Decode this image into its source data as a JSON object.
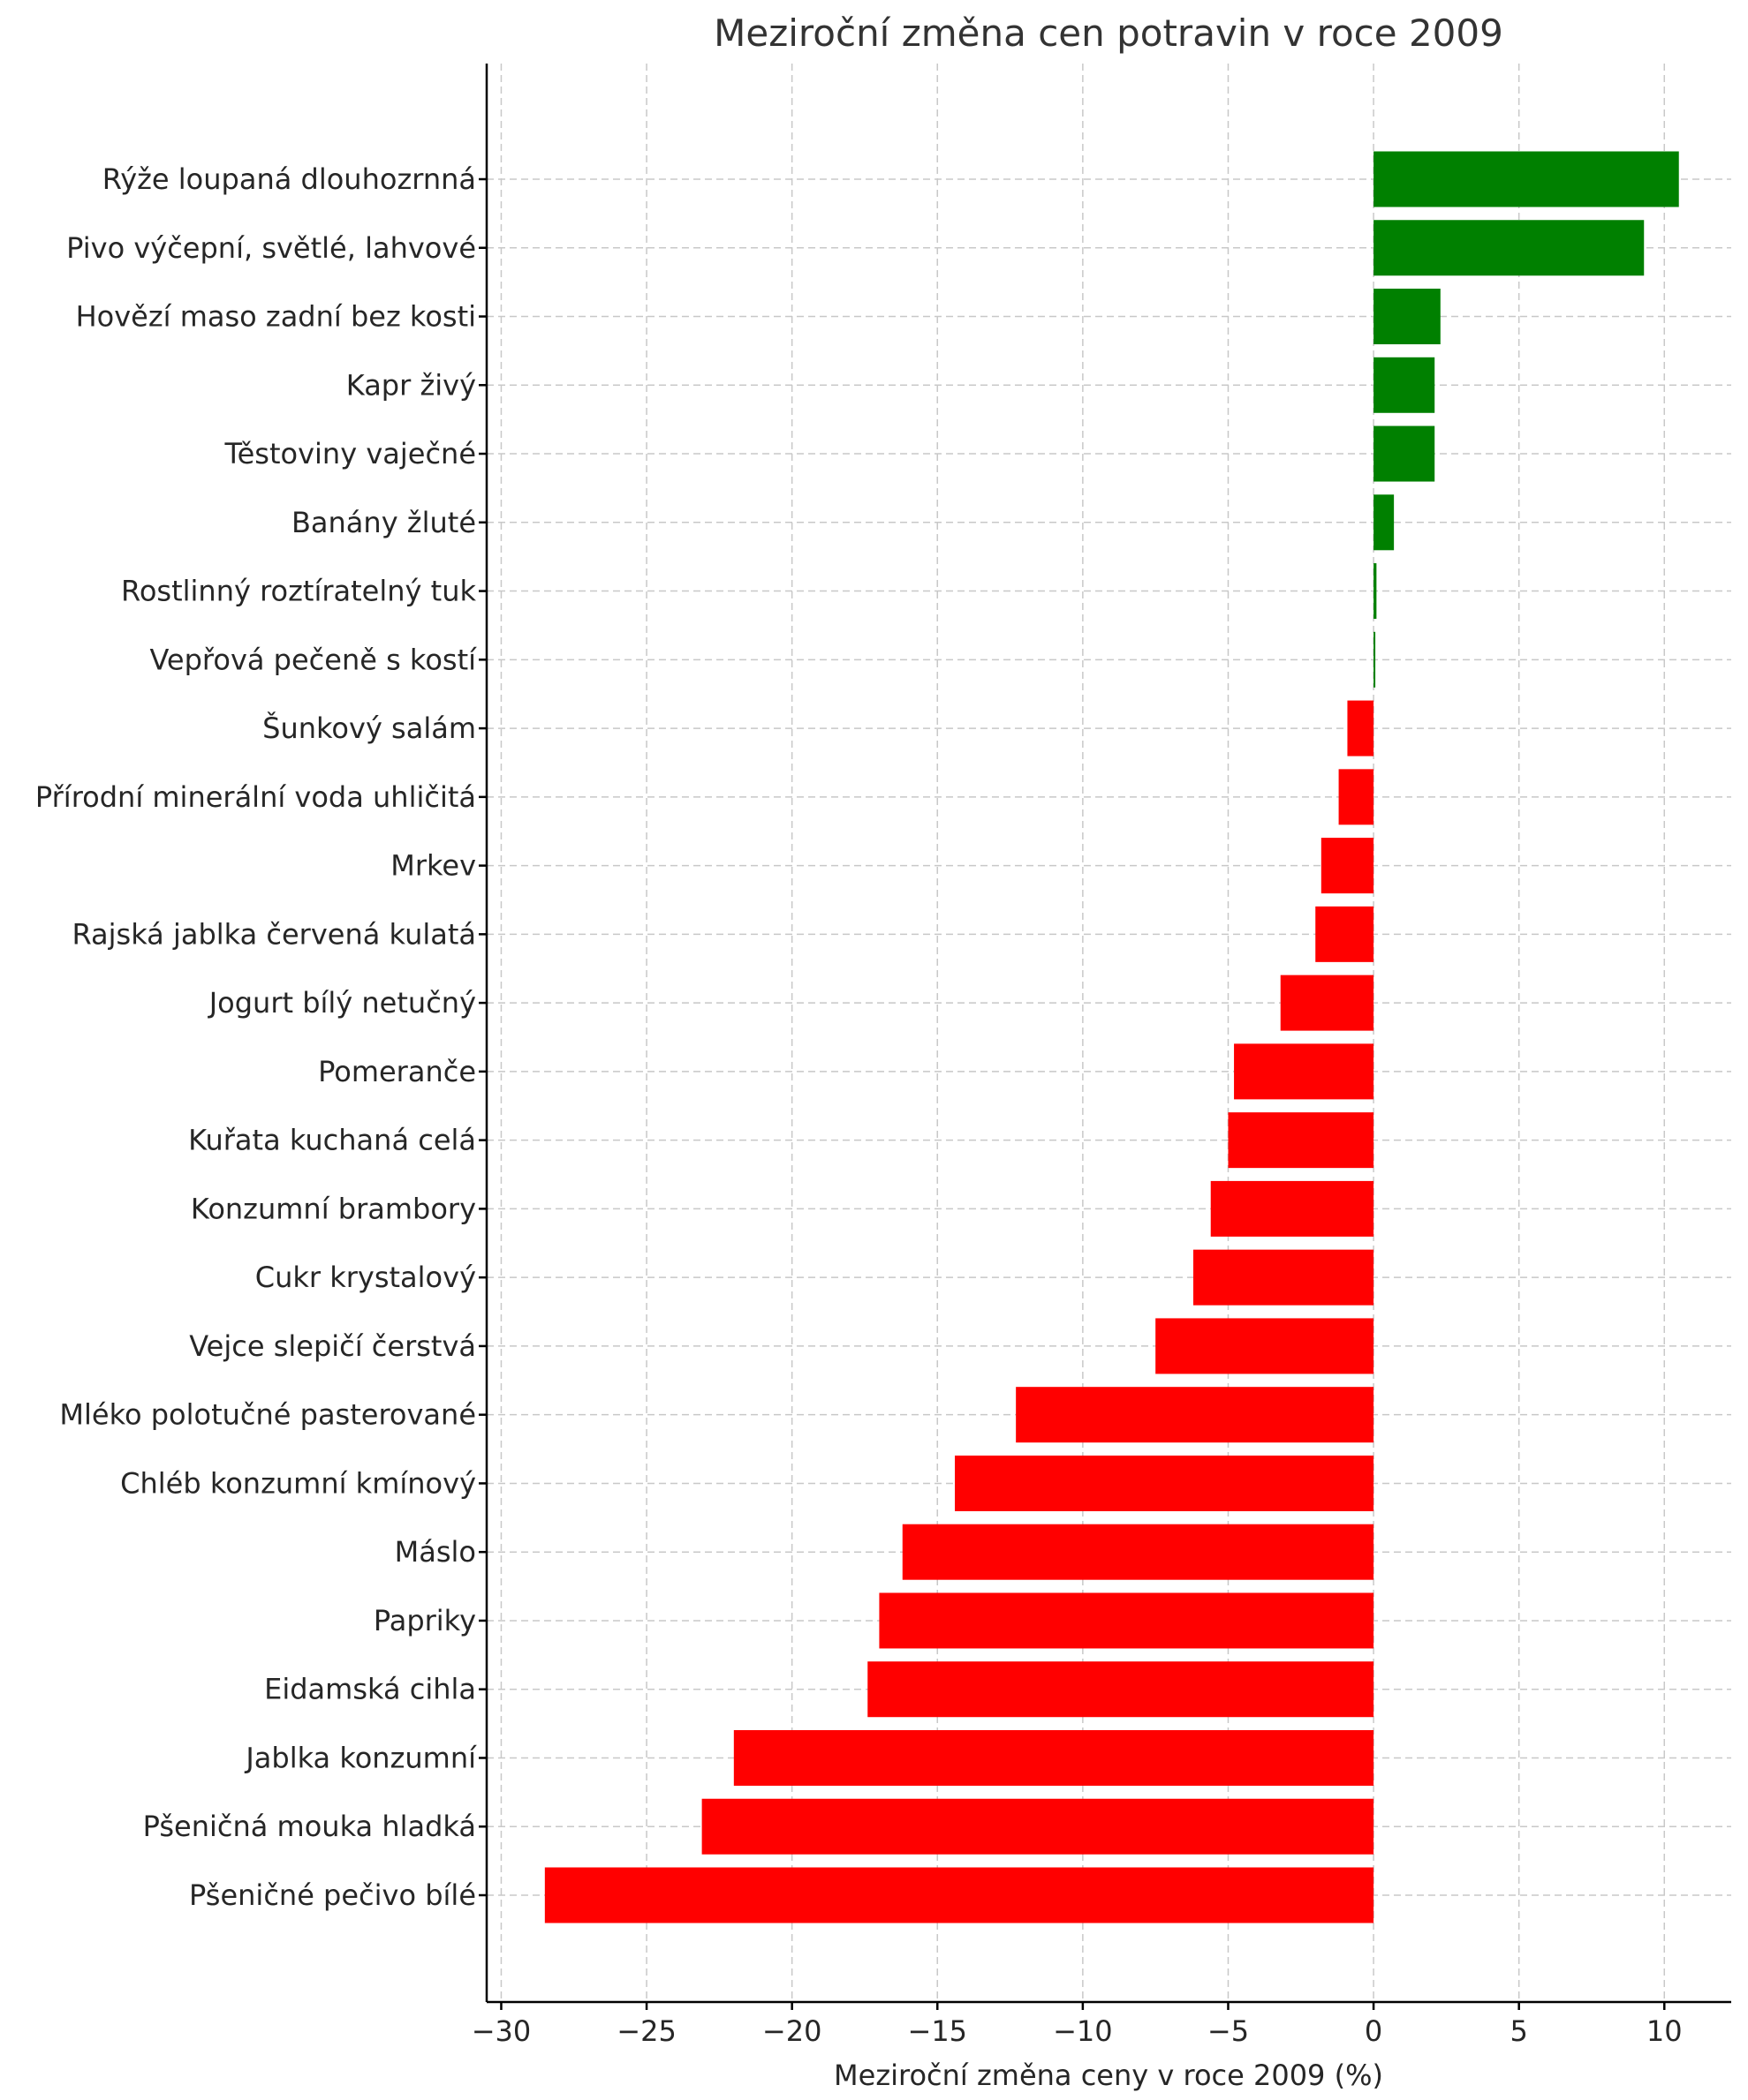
{
  "chart_data": {
    "type": "bar",
    "orientation": "horizontal",
    "title": "Meziroční změna cen potravin v roce 2009",
    "xlabel": "Meziroční změna ceny v roce 2009 (%)",
    "ylabel": "",
    "xlim": [
      -30.5,
      12.3
    ],
    "xticks": [
      -30,
      -25,
      -20,
      -15,
      -10,
      -5,
      0,
      5,
      10
    ],
    "xtick_labels": [
      "−30",
      "−25",
      "−20",
      "−15",
      "−10",
      "−5",
      "0",
      "5",
      "10"
    ],
    "grid": true,
    "positive_color": "#008000",
    "negative_color": "#ff0000",
    "categories": [
      "Rýže loupaná dlouhozrnná",
      "Pivo výčepní, světlé, lahvové",
      "Hovězí maso zadní bez kosti",
      "Kapr živý",
      "Těstoviny vaječné",
      "Banány žluté",
      "Rostlinný roztíratelný tuk",
      "Vepřová pečeně s kostí",
      "Šunkový salám",
      "Přírodní minerální voda uhličitá",
      "Mrkev",
      "Rajská jablka červená kulatá",
      "Jogurt bílý netučný",
      "Pomeranče",
      "Kuřata kuchaná celá",
      "Konzumní brambory",
      "Cukr krystalový",
      "Vejce slepičí čerstvá",
      "Mléko polotučné pasterované",
      "Chléb konzumní kmínový",
      "Máslo",
      "Papriky",
      "Eidamská cihla",
      "Jablka konzumní",
      "Pšeničná mouka hladká",
      "Pšeničné pečivo bílé"
    ],
    "values": [
      10.5,
      9.3,
      2.3,
      2.1,
      2.1,
      0.7,
      0.1,
      0.05,
      -0.9,
      -1.2,
      -1.8,
      -2.0,
      -3.2,
      -4.8,
      -5.0,
      -5.6,
      -6.2,
      -7.5,
      -12.3,
      -14.4,
      -16.2,
      -17.0,
      -17.4,
      -22.0,
      -23.1,
      -28.5
    ]
  }
}
